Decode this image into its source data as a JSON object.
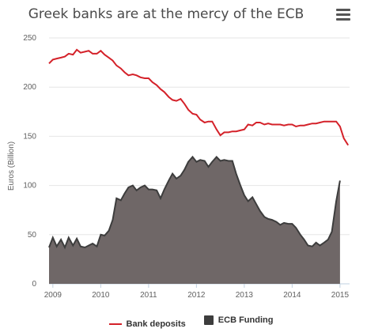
{
  "menu_icon": "hamburger-icon",
  "chart_data": {
    "type": "area",
    "title": "Greek banks are at the mercy of the ECB",
    "ylabel": "Euros (Billion)",
    "xlabel": "",
    "ylim": [
      0,
      250
    ],
    "yticks": [
      0,
      50,
      100,
      150,
      200,
      250
    ],
    "xticks": [
      "2009",
      "2010",
      "2011",
      "2012",
      "2013",
      "2014",
      "2015"
    ],
    "xlim": [
      2009.0,
      2015.2
    ],
    "grid": "horizontal",
    "legend_position": "bottom",
    "series": [
      {
        "name": "Bank deposits",
        "kind": "line",
        "color": "#d42129",
        "x": [
          2008.92,
          2009.0,
          2009.08,
          2009.17,
          2009.25,
          2009.33,
          2009.42,
          2009.5,
          2009.58,
          2009.67,
          2009.75,
          2009.83,
          2009.92,
          2010.0,
          2010.08,
          2010.17,
          2010.25,
          2010.33,
          2010.42,
          2010.5,
          2010.58,
          2010.67,
          2010.75,
          2010.83,
          2010.92,
          2011.0,
          2011.08,
          2011.17,
          2011.25,
          2011.33,
          2011.42,
          2011.5,
          2011.58,
          2011.67,
          2011.75,
          2011.83,
          2011.92,
          2012.0,
          2012.08,
          2012.17,
          2012.25,
          2012.33,
          2012.42,
          2012.5,
          2012.58,
          2012.67,
          2012.75,
          2012.83,
          2012.92,
          2013.0,
          2013.08,
          2013.17,
          2013.25,
          2013.33,
          2013.42,
          2013.5,
          2013.58,
          2013.67,
          2013.75,
          2013.83,
          2013.92,
          2014.0,
          2014.08,
          2014.17,
          2014.25,
          2014.33,
          2014.42,
          2014.5,
          2014.58,
          2014.67,
          2014.75,
          2014.83,
          2014.92,
          2015.0,
          2015.08,
          2015.17
        ],
        "values": [
          224,
          228,
          229,
          230,
          231,
          234,
          233,
          238,
          235,
          236,
          237,
          234,
          234,
          237,
          233,
          230,
          227,
          222,
          219,
          215,
          212,
          213,
          212,
          210,
          209,
          209,
          205,
          202,
          198,
          195,
          190,
          187,
          186,
          188,
          183,
          177,
          173,
          172,
          167,
          164,
          165,
          165,
          157,
          151,
          154,
          154,
          155,
          155,
          156,
          157,
          162,
          161,
          164,
          164,
          162,
          163,
          162,
          162,
          162,
          161,
          162,
          162,
          160,
          161,
          161,
          162,
          163,
          163,
          164,
          165,
          165,
          165,
          165,
          160,
          148,
          141
        ]
      },
      {
        "name": "ECB Funding",
        "kind": "area",
        "color": "#3d3d3d",
        "fill": "#6f6767",
        "x": [
          2008.92,
          2009.0,
          2009.08,
          2009.17,
          2009.25,
          2009.33,
          2009.42,
          2009.5,
          2009.58,
          2009.67,
          2009.75,
          2009.83,
          2009.92,
          2010.0,
          2010.08,
          2010.17,
          2010.25,
          2010.33,
          2010.42,
          2010.5,
          2010.58,
          2010.67,
          2010.75,
          2010.83,
          2010.92,
          2011.0,
          2011.08,
          2011.17,
          2011.25,
          2011.33,
          2011.42,
          2011.5,
          2011.58,
          2011.67,
          2011.75,
          2011.83,
          2011.92,
          2012.0,
          2012.08,
          2012.17,
          2012.25,
          2012.33,
          2012.42,
          2012.5,
          2012.58,
          2012.67,
          2012.75,
          2012.83,
          2012.92,
          2013.0,
          2013.08,
          2013.17,
          2013.25,
          2013.33,
          2013.42,
          2013.5,
          2013.58,
          2013.67,
          2013.75,
          2013.83,
          2013.92,
          2014.0,
          2014.08,
          2014.17,
          2014.25,
          2014.33,
          2014.42,
          2014.5,
          2014.58,
          2014.67,
          2014.75,
          2014.83,
          2014.92,
          2015.0,
          2015.08,
          2015.17
        ],
        "values": [
          37,
          47,
          38,
          45,
          37,
          47,
          39,
          46,
          38,
          37,
          39,
          41,
          38,
          50,
          49,
          54,
          65,
          87,
          85,
          92,
          98,
          100,
          95,
          98,
          100,
          96,
          96,
          95,
          87,
          96,
          105,
          112,
          107,
          110,
          116,
          124,
          129,
          124,
          126,
          125,
          119,
          124,
          129,
          125,
          126,
          125,
          125,
          112,
          100,
          90,
          84,
          88,
          81,
          74,
          68,
          66,
          65,
          63,
          60,
          62,
          61,
          61,
          57,
          50,
          45,
          39,
          38,
          42,
          39,
          42,
          45,
          53,
          84,
          105,
          0,
          0
        ]
      }
    ],
    "legend": [
      {
        "label": "Bank deposits",
        "marker": "line",
        "color": "#d42129"
      },
      {
        "label": "ECB Funding",
        "marker": "box",
        "color": "#3d3d3d"
      }
    ]
  }
}
